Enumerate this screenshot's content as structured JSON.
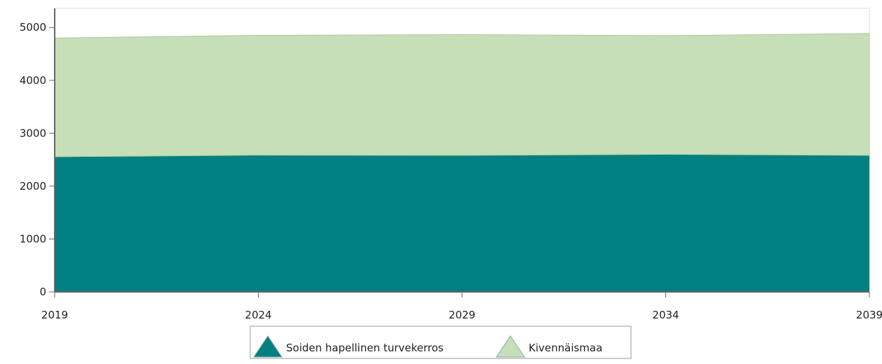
{
  "chart_data": {
    "type": "area",
    "stacked": true,
    "x": [
      2019,
      2024,
      2029,
      2034,
      2039
    ],
    "series": [
      {
        "name": "Soiden hapellinen turvekerros",
        "color": "#008080",
        "values": [
          2555,
          2585,
          2580,
          2600,
          2580
        ]
      },
      {
        "name": "Kivennäismaa",
        "color": "#c6dfb8",
        "values": [
          2245,
          2265,
          2285,
          2245,
          2305
        ]
      }
    ],
    "xlim": [
      2019,
      2039
    ],
    "xticks": [
      2019,
      2024,
      2029,
      2034,
      2039
    ],
    "ylim": [
      0,
      5360
    ],
    "yticks": [
      0,
      1000,
      2000,
      3000,
      4000,
      5000
    ],
    "grid": false,
    "legend": "bottom"
  }
}
